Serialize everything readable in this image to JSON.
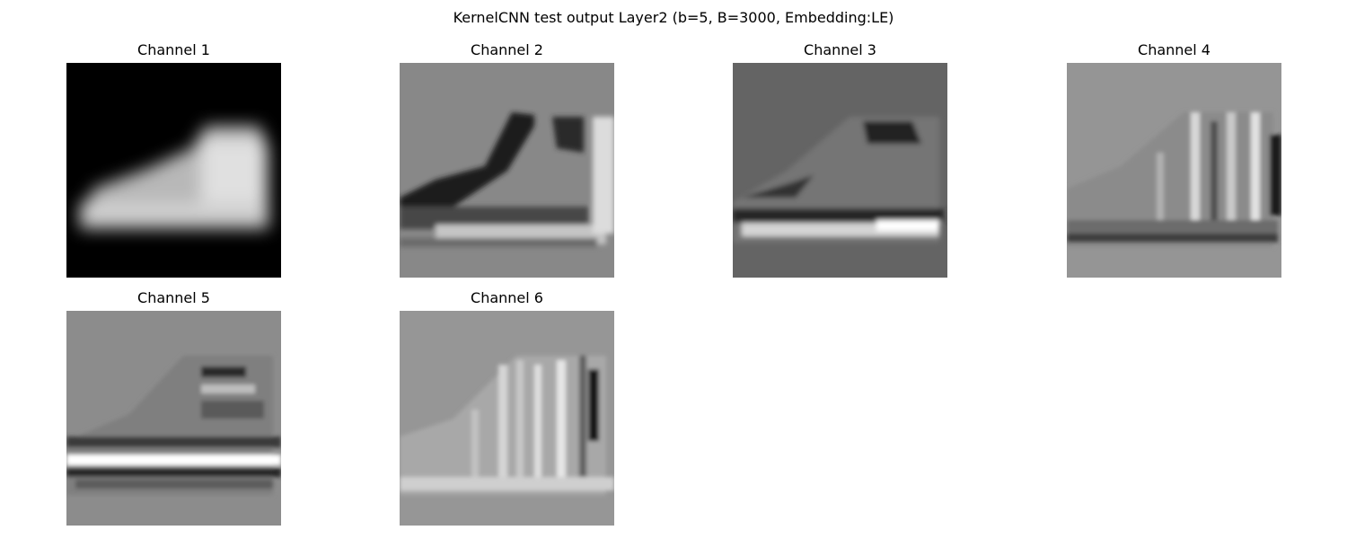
{
  "figure": {
    "title": "KernelCNN test output Layer2 (b=5, B=3000, Embedding:LE)"
  },
  "panels": [
    {
      "title": "Channel 1",
      "image": "blurred-boot-white-on-black",
      "background": "#000000"
    },
    {
      "title": "Channel 2",
      "image": "boot-edge-response-gray",
      "background": "#888888"
    },
    {
      "title": "Channel 3",
      "image": "boot-edge-response-dark-gray",
      "background": "#646464"
    },
    {
      "title": "Channel 4",
      "image": "boot-vertical-stripes-gray",
      "background": "#959595"
    },
    {
      "title": "Channel 5",
      "image": "boot-horizontal-edges-gray",
      "background": "#8c8c8c"
    },
    {
      "title": "Channel 6",
      "image": "boot-vertical-stripes-light",
      "background": "#969696"
    }
  ]
}
